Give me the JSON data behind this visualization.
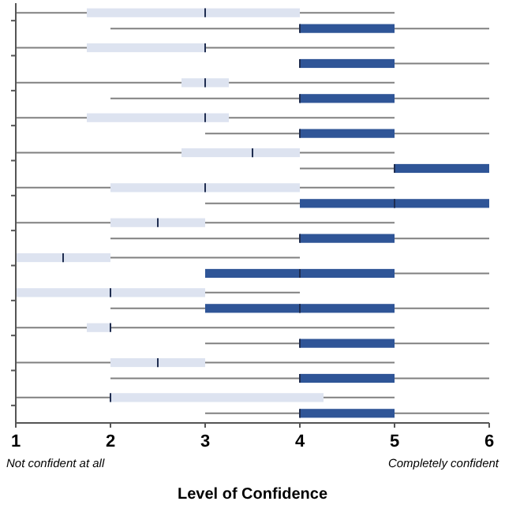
{
  "chart_data": {
    "type": "box",
    "orientation": "horizontal",
    "xlabel": "Level of Confidence",
    "xlim": [
      1,
      6
    ],
    "xticks": [
      1,
      2,
      3,
      4,
      5,
      6
    ],
    "categories": [
      null,
      null,
      null,
      null,
      null,
      null,
      null,
      null,
      null,
      null,
      null,
      null
    ],
    "annotations": [
      "Not confident at all",
      "Completely confident"
    ],
    "series": [
      {
        "color": "#dde3f0",
        "boxes": [
          {
            "low": 1,
            "q1": 1.75,
            "median": 3,
            "q3": 4,
            "high": 5
          },
          {
            "low": 1,
            "q1": 1.75,
            "median": 3,
            "q3": 3,
            "high": 5
          },
          {
            "low": 1,
            "q1": 2.75,
            "median": 3,
            "q3": 3.25,
            "high": 5
          },
          {
            "low": 1,
            "q1": 1.75,
            "median": 3,
            "q3": 3.25,
            "high": 5
          },
          {
            "low": 1,
            "q1": 2.75,
            "median": 3.5,
            "q3": 4,
            "high": 5
          },
          {
            "low": 1,
            "q1": 2,
            "median": 3,
            "q3": 4,
            "high": 5
          },
          {
            "low": 1,
            "q1": 2,
            "median": 2.5,
            "q3": 3,
            "high": 5
          },
          {
            "low": 1,
            "q1": 1,
            "median": 1.5,
            "q3": 2,
            "high": 4
          },
          {
            "low": 1,
            "q1": 1,
            "median": 2,
            "q3": 3,
            "high": 4
          },
          {
            "low": 1,
            "q1": 1.75,
            "median": 2,
            "q3": 2,
            "high": 5
          },
          {
            "low": 1,
            "q1": 2,
            "median": 2.5,
            "q3": 3,
            "high": 5
          },
          {
            "low": 1,
            "q1": 2,
            "median": 2,
            "q3": 4.25,
            "high": 5
          }
        ]
      },
      {
        "color": "#2f5597",
        "boxes": [
          {
            "low": 2,
            "q1": 4,
            "median": 4,
            "q3": 5,
            "high": 6
          },
          {
            "low": 4,
            "q1": 4,
            "median": 4,
            "q3": 5,
            "high": 6
          },
          {
            "low": 2,
            "q1": 4,
            "median": 4,
            "q3": 5,
            "high": 6
          },
          {
            "low": 3,
            "q1": 4,
            "median": 4,
            "q3": 5,
            "high": 6
          },
          {
            "low": 4,
            "q1": 5,
            "median": 5,
            "q3": 6,
            "high": 6
          },
          {
            "low": 3,
            "q1": 4,
            "median": 5,
            "q3": 6,
            "high": 6
          },
          {
            "low": 2,
            "q1": 4,
            "median": 4,
            "q3": 5,
            "high": 6
          },
          {
            "low": 3,
            "q1": 3,
            "median": 4,
            "q3": 5,
            "high": 6
          },
          {
            "low": 2,
            "q1": 3,
            "median": 4,
            "q3": 5,
            "high": 6
          },
          {
            "low": 3,
            "q1": 4,
            "median": 4,
            "q3": 5,
            "high": 6
          },
          {
            "low": 2,
            "q1": 4,
            "median": 4,
            "q3": 5,
            "high": 6
          },
          {
            "low": 3,
            "q1": 4,
            "median": 4,
            "q3": 5,
            "high": 6
          }
        ]
      }
    ]
  }
}
